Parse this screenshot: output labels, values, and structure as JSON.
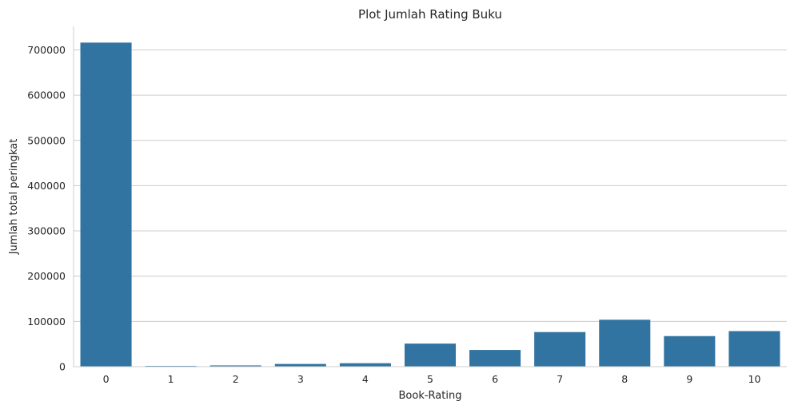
{
  "chart_data": {
    "type": "bar",
    "title": "Plot Jumlah Rating Buku",
    "xlabel": "Book-Rating",
    "ylabel": "Jumlah total peringkat",
    "categories": [
      "0",
      "1",
      "2",
      "3",
      "4",
      "5",
      "6",
      "7",
      "8",
      "9",
      "10"
    ],
    "values": [
      716109,
      1770,
      2759,
      5996,
      7617,
      50974,
      36924,
      76457,
      103736,
      67541,
      78610
    ],
    "ylim": [
      0,
      752000
    ],
    "yticks": [
      0,
      100000,
      200000,
      300000,
      400000,
      500000,
      600000,
      700000
    ],
    "ytick_labels": [
      "0",
      "100000",
      "200000",
      "300000",
      "400000",
      "500000",
      "600000",
      "700000"
    ],
    "grid": "horizontal",
    "bar_color": "#3274a1"
  }
}
